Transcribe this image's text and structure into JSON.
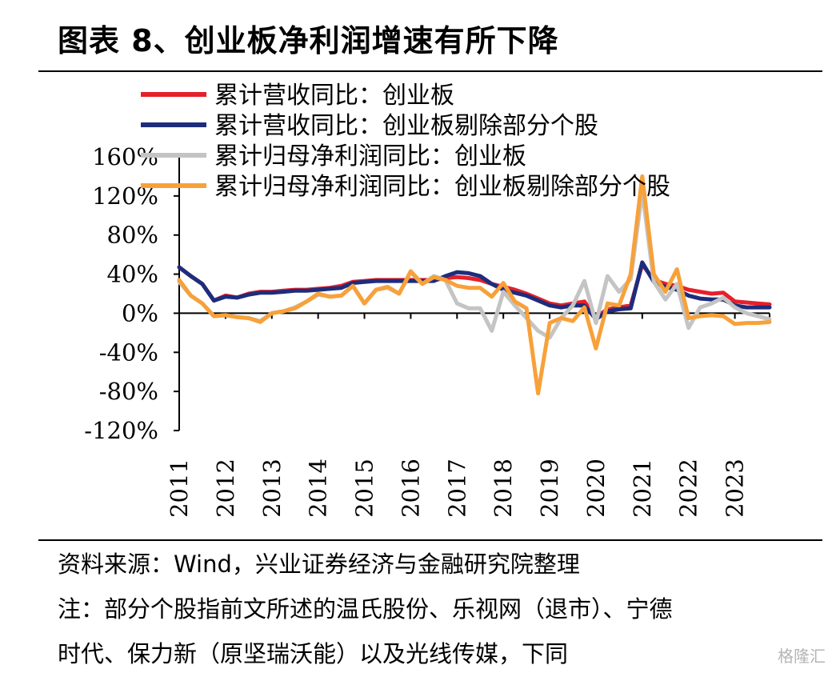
{
  "title": "图表 8、创业板净利润增速有所下降",
  "source": "资料来源：Wind，兴业证券经济与金融研究院整理",
  "note_line1": "注：部分个股指前文所述的温氏股份、乐视网（退市）、宁德",
  "note_line2": "时代、保力新（原坚瑞沃能）以及光线传媒，下同",
  "watermark": "格隆汇",
  "chart_data": {
    "type": "line",
    "y_tick_labels": [
      "160%",
      "120%",
      "80%",
      "40%",
      "0%",
      "-40%",
      "-80%",
      "-120%"
    ],
    "y_ticks": [
      160,
      120,
      80,
      40,
      0,
      -40,
      -80,
      -120
    ],
    "ylim": [
      -120,
      160
    ],
    "x_tick_labels": [
      "2011",
      "2012",
      "2013",
      "2014",
      "2015",
      "2016",
      "2017",
      "2018",
      "2019",
      "2020",
      "2021",
      "2022",
      "2023"
    ],
    "xlim": [
      2011,
      2023.75
    ],
    "grid": false,
    "legend_position": "top-left",
    "series": [
      {
        "name": "累计营收同比：创业板",
        "color": "#e5202a",
        "points": [
          [
            2011.0,
            47
          ],
          [
            2011.25,
            38
          ],
          [
            2011.5,
            30
          ],
          [
            2011.75,
            13
          ],
          [
            2012.0,
            18
          ],
          [
            2012.25,
            16
          ],
          [
            2012.5,
            20
          ],
          [
            2012.75,
            22
          ],
          [
            2013.0,
            22
          ],
          [
            2013.25,
            23
          ],
          [
            2013.5,
            24
          ],
          [
            2013.75,
            24
          ],
          [
            2014.0,
            25
          ],
          [
            2014.25,
            26
          ],
          [
            2014.5,
            28
          ],
          [
            2014.75,
            32
          ],
          [
            2015.0,
            33
          ],
          [
            2015.25,
            34
          ],
          [
            2015.5,
            34
          ],
          [
            2015.75,
            34
          ],
          [
            2016.0,
            34
          ],
          [
            2016.25,
            34
          ],
          [
            2016.5,
            34
          ],
          [
            2016.75,
            36
          ],
          [
            2017.0,
            37
          ],
          [
            2017.25,
            36
          ],
          [
            2017.5,
            34
          ],
          [
            2017.75,
            30
          ],
          [
            2018.0,
            27
          ],
          [
            2018.25,
            24
          ],
          [
            2018.5,
            20
          ],
          [
            2018.75,
            15
          ],
          [
            2019.0,
            10
          ],
          [
            2019.25,
            8
          ],
          [
            2019.5,
            10
          ],
          [
            2019.75,
            12
          ],
          [
            2020.0,
            -4
          ],
          [
            2020.25,
            4
          ],
          [
            2020.5,
            6
          ],
          [
            2020.75,
            8
          ],
          [
            2021.0,
            50
          ],
          [
            2021.25,
            34
          ],
          [
            2021.5,
            30
          ],
          [
            2021.75,
            28
          ],
          [
            2022.0,
            24
          ],
          [
            2022.25,
            22
          ],
          [
            2022.5,
            20
          ],
          [
            2022.75,
            21
          ],
          [
            2023.0,
            12
          ],
          [
            2023.25,
            11
          ],
          [
            2023.5,
            10
          ],
          [
            2023.75,
            9
          ]
        ]
      },
      {
        "name": "累计营收同比：创业板剔除部分个股",
        "color": "#1d2d7c",
        "points": [
          [
            2011.0,
            47
          ],
          [
            2011.25,
            38
          ],
          [
            2011.5,
            30
          ],
          [
            2011.75,
            13
          ],
          [
            2012.0,
            17
          ],
          [
            2012.25,
            16
          ],
          [
            2012.5,
            19
          ],
          [
            2012.75,
            21
          ],
          [
            2013.0,
            21
          ],
          [
            2013.25,
            22
          ],
          [
            2013.5,
            23
          ],
          [
            2013.75,
            23
          ],
          [
            2014.0,
            24
          ],
          [
            2014.25,
            25
          ],
          [
            2014.5,
            26
          ],
          [
            2014.75,
            31
          ],
          [
            2015.0,
            32
          ],
          [
            2015.25,
            33
          ],
          [
            2015.5,
            33
          ],
          [
            2015.75,
            33
          ],
          [
            2016.0,
            33
          ],
          [
            2016.25,
            33
          ],
          [
            2016.5,
            33
          ],
          [
            2016.75,
            38
          ],
          [
            2017.0,
            42
          ],
          [
            2017.25,
            41
          ],
          [
            2017.5,
            38
          ],
          [
            2017.75,
            30
          ],
          [
            2018.0,
            24
          ],
          [
            2018.25,
            21
          ],
          [
            2018.5,
            18
          ],
          [
            2018.75,
            13
          ],
          [
            2019.0,
            8
          ],
          [
            2019.25,
            6
          ],
          [
            2019.5,
            8
          ],
          [
            2019.75,
            8
          ],
          [
            2020.0,
            -6
          ],
          [
            2020.25,
            2
          ],
          [
            2020.5,
            4
          ],
          [
            2020.75,
            5
          ],
          [
            2021.0,
            52
          ],
          [
            2021.25,
            32
          ],
          [
            2021.5,
            27
          ],
          [
            2021.75,
            24
          ],
          [
            2022.0,
            18
          ],
          [
            2022.25,
            15
          ],
          [
            2022.5,
            14
          ],
          [
            2022.75,
            14
          ],
          [
            2023.0,
            8
          ],
          [
            2023.25,
            6
          ],
          [
            2023.5,
            6
          ],
          [
            2023.75,
            6
          ]
        ]
      },
      {
        "name": "累计归母净利润同比：创业板",
        "color": "#c4c4c4",
        "points": [
          [
            2011.0,
            32
          ],
          [
            2011.25,
            18
          ],
          [
            2011.5,
            10
          ],
          [
            2011.75,
            -3
          ],
          [
            2012.0,
            -2
          ],
          [
            2012.25,
            -4
          ],
          [
            2012.5,
            -5
          ],
          [
            2012.75,
            -8
          ],
          [
            2013.0,
            0
          ],
          [
            2013.25,
            2
          ],
          [
            2013.5,
            6
          ],
          [
            2013.75,
            12
          ],
          [
            2014.0,
            19
          ],
          [
            2014.25,
            17
          ],
          [
            2014.5,
            18
          ],
          [
            2014.75,
            28
          ],
          [
            2015.0,
            10
          ],
          [
            2015.25,
            24
          ],
          [
            2015.5,
            26
          ],
          [
            2015.75,
            20
          ],
          [
            2016.0,
            42
          ],
          [
            2016.25,
            30
          ],
          [
            2016.5,
            38
          ],
          [
            2016.75,
            34
          ],
          [
            2017.0,
            10
          ],
          [
            2017.25,
            5
          ],
          [
            2017.5,
            5
          ],
          [
            2017.75,
            -18
          ],
          [
            2018.0,
            22
          ],
          [
            2018.25,
            8
          ],
          [
            2018.5,
            -5
          ],
          [
            2018.75,
            -18
          ],
          [
            2019.0,
            -25
          ],
          [
            2019.25,
            -5
          ],
          [
            2019.5,
            8
          ],
          [
            2019.75,
            33
          ],
          [
            2020.0,
            -10
          ],
          [
            2020.25,
            38
          ],
          [
            2020.5,
            22
          ],
          [
            2020.75,
            35
          ],
          [
            2021.0,
            125
          ],
          [
            2021.25,
            32
          ],
          [
            2021.5,
            14
          ],
          [
            2021.75,
            30
          ],
          [
            2022.0,
            -15
          ],
          [
            2022.25,
            6
          ],
          [
            2022.5,
            10
          ],
          [
            2022.75,
            16
          ],
          [
            2023.0,
            6
          ],
          [
            2023.25,
            0
          ],
          [
            2023.5,
            -3
          ],
          [
            2023.75,
            -6
          ]
        ]
      },
      {
        "name": "累计归母净利润同比：创业板剔除部分个股",
        "color": "#f7a13a",
        "points": [
          [
            2011.0,
            34
          ],
          [
            2011.25,
            18
          ],
          [
            2011.5,
            10
          ],
          [
            2011.75,
            -3
          ],
          [
            2012.0,
            -2
          ],
          [
            2012.25,
            -4
          ],
          [
            2012.5,
            -5
          ],
          [
            2012.75,
            -9
          ],
          [
            2013.0,
            0
          ],
          [
            2013.25,
            2
          ],
          [
            2013.5,
            5
          ],
          [
            2013.75,
            12
          ],
          [
            2014.0,
            20
          ],
          [
            2014.25,
            17
          ],
          [
            2014.5,
            18
          ],
          [
            2014.75,
            28
          ],
          [
            2015.0,
            10
          ],
          [
            2015.25,
            24
          ],
          [
            2015.5,
            27
          ],
          [
            2015.75,
            20
          ],
          [
            2016.0,
            43
          ],
          [
            2016.25,
            30
          ],
          [
            2016.5,
            37
          ],
          [
            2016.75,
            34
          ],
          [
            2017.0,
            28
          ],
          [
            2017.25,
            26
          ],
          [
            2017.5,
            26
          ],
          [
            2017.75,
            17
          ],
          [
            2018.0,
            31
          ],
          [
            2018.25,
            12
          ],
          [
            2018.5,
            5
          ],
          [
            2018.75,
            -82
          ],
          [
            2019.0,
            -10
          ],
          [
            2019.25,
            -5
          ],
          [
            2019.5,
            -8
          ],
          [
            2019.75,
            6
          ],
          [
            2020.0,
            -36
          ],
          [
            2020.25,
            10
          ],
          [
            2020.5,
            8
          ],
          [
            2020.75,
            40
          ],
          [
            2021.0,
            140
          ],
          [
            2021.25,
            40
          ],
          [
            2021.5,
            22
          ],
          [
            2021.75,
            45
          ],
          [
            2022.0,
            -5
          ],
          [
            2022.25,
            -3
          ],
          [
            2022.5,
            -2
          ],
          [
            2022.75,
            -3
          ],
          [
            2023.0,
            -11
          ],
          [
            2023.25,
            -10
          ],
          [
            2023.5,
            -10
          ],
          [
            2023.75,
            -9
          ]
        ]
      }
    ]
  }
}
